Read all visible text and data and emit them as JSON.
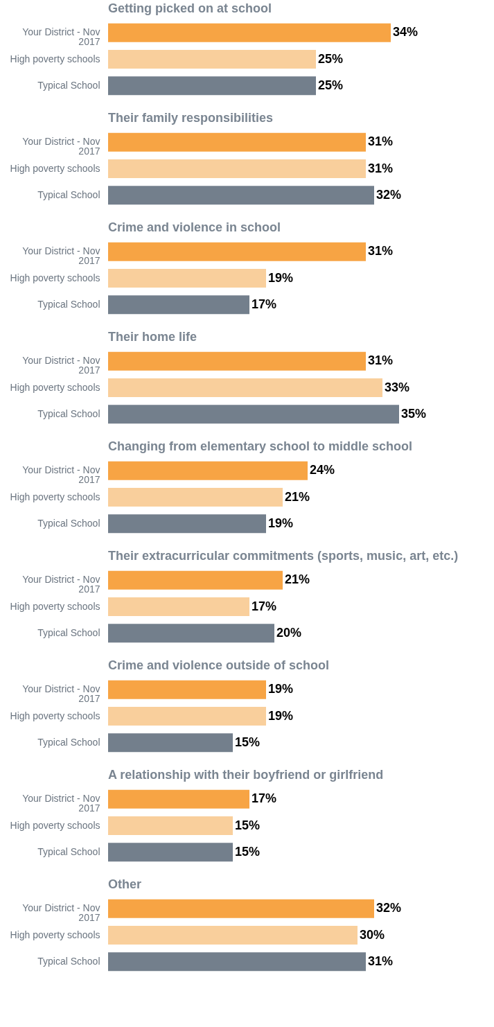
{
  "chart_data": [
    {
      "type": "bar",
      "orientation": "horizontal",
      "title": "Getting picked on at school",
      "categories": [
        "Your District - Nov 2017",
        "High poverty schools",
        "Typical School"
      ],
      "values": [
        34,
        25,
        25
      ],
      "value_labels": [
        "34%",
        "25%",
        "25%"
      ],
      "colors": [
        "#f7a444",
        "#f9cf9c",
        "#737f8c"
      ],
      "tick_labels": "y",
      "grid": false
    },
    {
      "type": "bar",
      "orientation": "horizontal",
      "title": "Their family responsibilities",
      "categories": [
        "Your District - Nov 2017",
        "High poverty schools",
        "Typical School"
      ],
      "values": [
        31,
        31,
        32
      ],
      "value_labels": [
        "31%",
        "31%",
        "32%"
      ],
      "colors": [
        "#f7a444",
        "#f9cf9c",
        "#737f8c"
      ],
      "tick_labels": "y",
      "grid": false
    },
    {
      "type": "bar",
      "orientation": "horizontal",
      "title": "Crime and violence in school",
      "categories": [
        "Your District - Nov 2017",
        "High poverty schools",
        "Typical School"
      ],
      "values": [
        31,
        19,
        17
      ],
      "value_labels": [
        "31%",
        "19%",
        "17%"
      ],
      "colors": [
        "#f7a444",
        "#f9cf9c",
        "#737f8c"
      ],
      "tick_labels": "y",
      "grid": false
    },
    {
      "type": "bar",
      "orientation": "horizontal",
      "title": "Their home life",
      "categories": [
        "Your District - Nov 2017",
        "High poverty schools",
        "Typical School"
      ],
      "values": [
        31,
        33,
        35
      ],
      "value_labels": [
        "31%",
        "33%",
        "35%"
      ],
      "colors": [
        "#f7a444",
        "#f9cf9c",
        "#737f8c"
      ],
      "tick_labels": "y",
      "grid": false
    },
    {
      "type": "bar",
      "orientation": "horizontal",
      "title": "Changing from elementary school to middle school",
      "categories": [
        "Your District - Nov 2017",
        "High poverty schools",
        "Typical School"
      ],
      "values": [
        24,
        21,
        19
      ],
      "value_labels": [
        "24%",
        "21%",
        "19%"
      ],
      "colors": [
        "#f7a444",
        "#f9cf9c",
        "#737f8c"
      ],
      "tick_labels": "y",
      "grid": false
    },
    {
      "type": "bar",
      "orientation": "horizontal",
      "title": "Their extracurricular commitments (sports, music, art, etc.)",
      "categories": [
        "Your District - Nov 2017",
        "High poverty schools",
        "Typical School"
      ],
      "values": [
        21,
        17,
        20
      ],
      "value_labels": [
        "21%",
        "17%",
        "20%"
      ],
      "colors": [
        "#f7a444",
        "#f9cf9c",
        "#737f8c"
      ],
      "tick_labels": "y",
      "grid": false
    },
    {
      "type": "bar",
      "orientation": "horizontal",
      "title": "Crime and violence outside of school",
      "categories": [
        "Your District - Nov 2017",
        "High poverty schools",
        "Typical School"
      ],
      "values": [
        19,
        19,
        15
      ],
      "value_labels": [
        "19%",
        "19%",
        "15%"
      ],
      "colors": [
        "#f7a444",
        "#f9cf9c",
        "#737f8c"
      ],
      "tick_labels": "y",
      "grid": false
    },
    {
      "type": "bar",
      "orientation": "horizontal",
      "title": "A relationship with their boyfriend or girlfriend",
      "categories": [
        "Your District - Nov 2017",
        "High poverty schools",
        "Typical School"
      ],
      "values": [
        17,
        15,
        15
      ],
      "value_labels": [
        "17%",
        "15%",
        "15%"
      ],
      "colors": [
        "#f7a444",
        "#f9cf9c",
        "#737f8c"
      ],
      "tick_labels": "y",
      "grid": false
    },
    {
      "type": "bar",
      "orientation": "horizontal",
      "title": "Other",
      "categories": [
        "Your District - Nov 2017",
        "High poverty schools",
        "Typical School"
      ],
      "values": [
        32,
        30,
        31
      ],
      "value_labels": [
        "32%",
        "30%",
        "31%"
      ],
      "colors": [
        "#f7a444",
        "#f9cf9c",
        "#737f8c"
      ],
      "tick_labels": "y",
      "grid": false
    }
  ]
}
